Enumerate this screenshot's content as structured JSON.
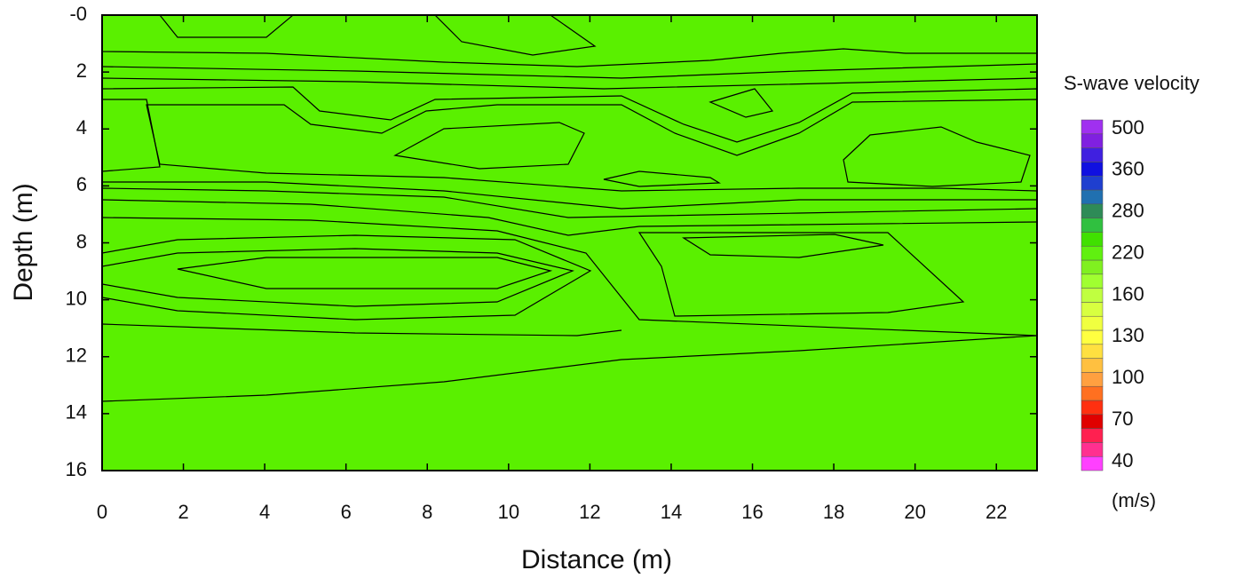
{
  "chart_data": {
    "type": "contour",
    "xlabel": "Distance (m)",
    "ylabel": "Depth (m)",
    "xlim": [
      0,
      23
    ],
    "ylim": [
      0,
      16
    ],
    "y_inverted": true,
    "xticks": [
      0,
      2,
      4,
      6,
      8,
      10,
      12,
      14,
      16,
      18,
      20,
      22
    ],
    "yticks": [
      {
        "value": 0,
        "label": "-0"
      },
      2,
      4,
      6,
      8,
      10,
      12,
      14,
      16
    ],
    "colorbar": {
      "title": "S-wave velocity",
      "unit": "(m/s)",
      "ticks": [
        40,
        70,
        100,
        130,
        160,
        220,
        280,
        360,
        500
      ],
      "colors": [
        "#ff40ff",
        "#ff3090",
        "#ff2050",
        "#e00000",
        "#ff3010",
        "#ff7020",
        "#ffa040",
        "#ffc040",
        "#ffe040",
        "#ffff40",
        "#f0ff40",
        "#d8ff40",
        "#c0ff40",
        "#a0ff30",
        "#80f020",
        "#60f010",
        "#40e000",
        "#30c040",
        "#2e8b57",
        "#2070b0",
        "#1f3fcf",
        "#1010e0",
        "#4020e0",
        "#8020e0",
        "#a030f0"
      ]
    }
  }
}
